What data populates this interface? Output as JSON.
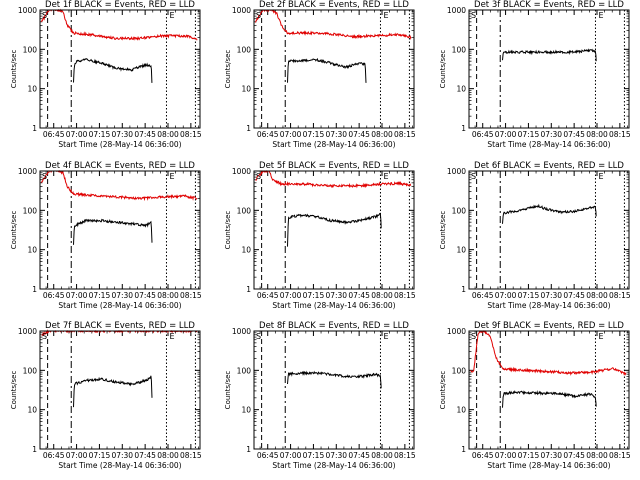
{
  "figure": {
    "time_base": "28-May-14 06:36:00",
    "x_tick_labels": [
      "06:45",
      "07:00",
      "07:15",
      "07:30",
      "07:45",
      "08:00",
      "08:15"
    ],
    "x_range_minutes_from_base": [
      0,
      105
    ]
  },
  "chart_data": [
    {
      "type": "line",
      "title": "Det 1f BLACK = Events, RED = LLD",
      "xlabel": "Start Time (28-May-14 06:36:00)",
      "ylabel": "Counts/sec",
      "yscale": "log",
      "ylim": [
        1,
        1000
      ],
      "y_tick_labels": [
        "1",
        "10",
        "100",
        "1000"
      ],
      "markers": [
        "S",
        "E"
      ],
      "series": [
        {
          "name": "Events",
          "color": "#000000",
          "values": [
            [
              22,
              14
            ],
            [
              22.5,
              40
            ],
            [
              24,
              50
            ],
            [
              30,
              55
            ],
            [
              40,
              45
            ],
            [
              50,
              33
            ],
            [
              60,
              30
            ],
            [
              65,
              36
            ],
            [
              70,
              40
            ],
            [
              73,
              38
            ],
            [
              73.5,
              14
            ]
          ]
        },
        {
          "name": "LLD",
          "color": "#e00000",
          "values": [
            [
              1,
              500
            ],
            [
              6,
              1000
            ],
            [
              12,
              1000
            ],
            [
              15,
              900
            ],
            [
              18,
              400
            ],
            [
              22,
              260
            ],
            [
              35,
              230
            ],
            [
              50,
              190
            ],
            [
              65,
              190
            ],
            [
              80,
              220
            ],
            [
              95,
              220
            ],
            [
              100,
              200
            ],
            [
              103,
              170
            ]
          ]
        }
      ]
    },
    {
      "type": "line",
      "title": "Det 2f BLACK = Events, RED = LLD",
      "xlabel": "Start Time (28-May-14 06:36:00)",
      "ylabel": "Counts/sec",
      "yscale": "log",
      "ylim": [
        1,
        1000
      ],
      "y_tick_labels": [
        "1",
        "10",
        "100",
        "1000"
      ],
      "markers": [
        "S",
        "E"
      ],
      "series": [
        {
          "name": "Events",
          "color": "#000000",
          "values": [
            [
              22,
              15
            ],
            [
              22.5,
              50
            ],
            [
              30,
              50
            ],
            [
              40,
              55
            ],
            [
              50,
              45
            ],
            [
              60,
              35
            ],
            [
              70,
              45
            ],
            [
              73,
              42
            ],
            [
              73.5,
              14
            ]
          ]
        },
        {
          "name": "LLD",
          "color": "#e00000",
          "values": [
            [
              1,
              500
            ],
            [
              6,
              1000
            ],
            [
              12,
              1000
            ],
            [
              15,
              800
            ],
            [
              18,
              400
            ],
            [
              22,
              260
            ],
            [
              35,
              260
            ],
            [
              50,
              250
            ],
            [
              65,
              210
            ],
            [
              80,
              220
            ],
            [
              95,
              240
            ],
            [
              103,
              200
            ]
          ]
        }
      ]
    },
    {
      "type": "line",
      "title": "Det 3f BLACK = Events, RED = LLD",
      "xlabel": "Start Time (28-May-14 06:36:00)",
      "ylabel": "Counts/sec",
      "yscale": "log",
      "ylim": [
        1,
        1000
      ],
      "y_tick_labels": [
        "1",
        "10",
        "100",
        "1000"
      ],
      "markers": [
        "S",
        "E"
      ],
      "series": [
        {
          "name": "Events",
          "color": "#000000",
          "values": [
            [
              22,
              55
            ],
            [
              22.5,
              85
            ],
            [
              35,
              85
            ],
            [
              50,
              85
            ],
            [
              65,
              85
            ],
            [
              75,
              90
            ],
            [
              80,
              95
            ],
            [
              83,
              90
            ],
            [
              83.5,
              50
            ]
          ]
        }
      ]
    },
    {
      "type": "line",
      "title": "Det 4f BLACK = Events, RED = LLD",
      "xlabel": "Start Time (28-May-14 06:36:00)",
      "ylabel": "Counts/sec",
      "yscale": "log",
      "ylim": [
        1,
        1000
      ],
      "y_tick_labels": [
        "1",
        "10",
        "100",
        "1000"
      ],
      "markers": [
        "S",
        "E"
      ],
      "series": [
        {
          "name": "Events",
          "color": "#000000",
          "values": [
            [
              22,
              14
            ],
            [
              22.5,
              40
            ],
            [
              30,
              55
            ],
            [
              40,
              55
            ],
            [
              50,
              50
            ],
            [
              60,
              45
            ],
            [
              70,
              42
            ],
            [
              73,
              48
            ],
            [
              73.5,
              15
            ]
          ]
        },
        {
          "name": "LLD",
          "color": "#e00000",
          "values": [
            [
              1,
              500
            ],
            [
              6,
              1000
            ],
            [
              12,
              1000
            ],
            [
              15,
              900
            ],
            [
              18,
              400
            ],
            [
              22,
              260
            ],
            [
              35,
              240
            ],
            [
              50,
              220
            ],
            [
              65,
              200
            ],
            [
              80,
              220
            ],
            [
              95,
              230
            ],
            [
              103,
              200
            ]
          ]
        }
      ]
    },
    {
      "type": "line",
      "title": "Det 5f BLACK = Events, RED = LLD",
      "xlabel": "Start Time (28-May-14 06:36:00)",
      "ylabel": "Counts/sec",
      "yscale": "log",
      "ylim": [
        1,
        1000
      ],
      "y_tick_labels": [
        "1",
        "10",
        "100",
        "1000"
      ],
      "markers": [
        "S",
        "E"
      ],
      "series": [
        {
          "name": "Events",
          "color": "#000000",
          "values": [
            [
              22,
              12
            ],
            [
              22.5,
              65
            ],
            [
              30,
              75
            ],
            [
              40,
              70
            ],
            [
              50,
              55
            ],
            [
              60,
              50
            ],
            [
              70,
              55
            ],
            [
              80,
              70
            ],
            [
              83,
              80
            ],
            [
              83.5,
              35
            ]
          ]
        },
        {
          "name": "LLD",
          "color": "#e00000",
          "values": [
            [
              1,
              600
            ],
            [
              6,
              1000
            ],
            [
              10,
              1000
            ],
            [
              12,
              600
            ],
            [
              18,
              470
            ],
            [
              35,
              460
            ],
            [
              50,
              420
            ],
            [
              70,
              420
            ],
            [
              85,
              470
            ],
            [
              95,
              480
            ],
            [
              103,
              440
            ]
          ]
        }
      ]
    },
    {
      "type": "line",
      "title": "Det 6f BLACK = Events, RED = LLD",
      "xlabel": "Start Time (28-May-14 06:36:00)",
      "ylabel": "Counts/sec",
      "yscale": "log",
      "ylim": [
        1,
        1000
      ],
      "y_tick_labels": [
        "1",
        "10",
        "100",
        "1000"
      ],
      "markers": [
        "S",
        "E"
      ],
      "series": [
        {
          "name": "Events",
          "color": "#000000",
          "values": [
            [
              22,
              45
            ],
            [
              22.5,
              85
            ],
            [
              30,
              95
            ],
            [
              38,
              110
            ],
            [
              45,
              130
            ],
            [
              50,
              110
            ],
            [
              60,
              90
            ],
            [
              70,
              95
            ],
            [
              78,
              110
            ],
            [
              82,
              125
            ],
            [
              83,
              120
            ],
            [
              83.5,
              70
            ]
          ]
        }
      ]
    },
    {
      "type": "line",
      "title": "Det 7f BLACK = Events, RED = LLD",
      "xlabel": "Start Time (28-May-14 06:36:00)",
      "ylabel": "Counts/sec",
      "yscale": "log",
      "ylim": [
        1,
        1000
      ],
      "y_tick_labels": [
        "1",
        "10",
        "100",
        "1000"
      ],
      "markers": [
        "S",
        "E"
      ],
      "series": [
        {
          "name": "Events",
          "color": "#000000",
          "values": [
            [
              22,
              12
            ],
            [
              22.5,
              45
            ],
            [
              30,
              55
            ],
            [
              40,
              60
            ],
            [
              50,
              50
            ],
            [
              60,
              45
            ],
            [
              70,
              55
            ],
            [
              73,
              70
            ],
            [
              73.5,
              20
            ]
          ]
        },
        {
          "name": "LLD",
          "color": "#e00000",
          "values": [
            [
              1,
              800
            ],
            [
              6,
              1000
            ],
            [
              20,
              1000
            ],
            [
              40,
              1000
            ],
            [
              60,
              1000
            ],
            [
              80,
              1000
            ],
            [
              103,
              1000
            ]
          ]
        }
      ]
    },
    {
      "type": "line",
      "title": "Det 8f BLACK = Events, RED = LLD",
      "xlabel": "Start Time (28-May-14 06:36:00)",
      "ylabel": "Counts/sec",
      "yscale": "log",
      "ylim": [
        1,
        1000
      ],
      "y_tick_labels": [
        "1",
        "10",
        "100",
        "1000"
      ],
      "markers": [
        "S",
        "E"
      ],
      "series": [
        {
          "name": "Events",
          "color": "#000000",
          "values": [
            [
              22,
              45
            ],
            [
              22.5,
              80
            ],
            [
              30,
              85
            ],
            [
              40,
              85
            ],
            [
              50,
              80
            ],
            [
              60,
              70
            ],
            [
              70,
              70
            ],
            [
              80,
              80
            ],
            [
              83,
              70
            ],
            [
              83.5,
              35
            ]
          ]
        }
      ]
    },
    {
      "type": "line",
      "title": "Det 9f BLACK = Events, RED = LLD",
      "xlabel": "Start Time (28-May-14 06:36:00)",
      "ylabel": "Counts/sec",
      "yscale": "log",
      "ylim": [
        1,
        1000
      ],
      "y_tick_labels": [
        "1",
        "10",
        "100",
        "1000"
      ],
      "markers": [
        "S",
        "E"
      ],
      "series": [
        {
          "name": "Events",
          "color": "#000000",
          "values": [
            [
              22,
              12
            ],
            [
              22.5,
              25
            ],
            [
              30,
              28
            ],
            [
              40,
              27
            ],
            [
              50,
              26
            ],
            [
              60,
              25
            ],
            [
              70,
              22
            ],
            [
              80,
              25
            ],
            [
              83,
              20
            ],
            [
              83.5,
              12
            ]
          ]
        },
        {
          "name": "LLD",
          "color": "#e00000",
          "values": [
            [
              1,
              100
            ],
            [
              3,
              90
            ],
            [
              6,
              900
            ],
            [
              10,
              1000
            ],
            [
              14,
              700
            ],
            [
              18,
              200
            ],
            [
              22,
              110
            ],
            [
              35,
              100
            ],
            [
              50,
              95
            ],
            [
              65,
              85
            ],
            [
              80,
              90
            ],
            [
              95,
              110
            ],
            [
              103,
              80
            ]
          ]
        }
      ]
    }
  ]
}
